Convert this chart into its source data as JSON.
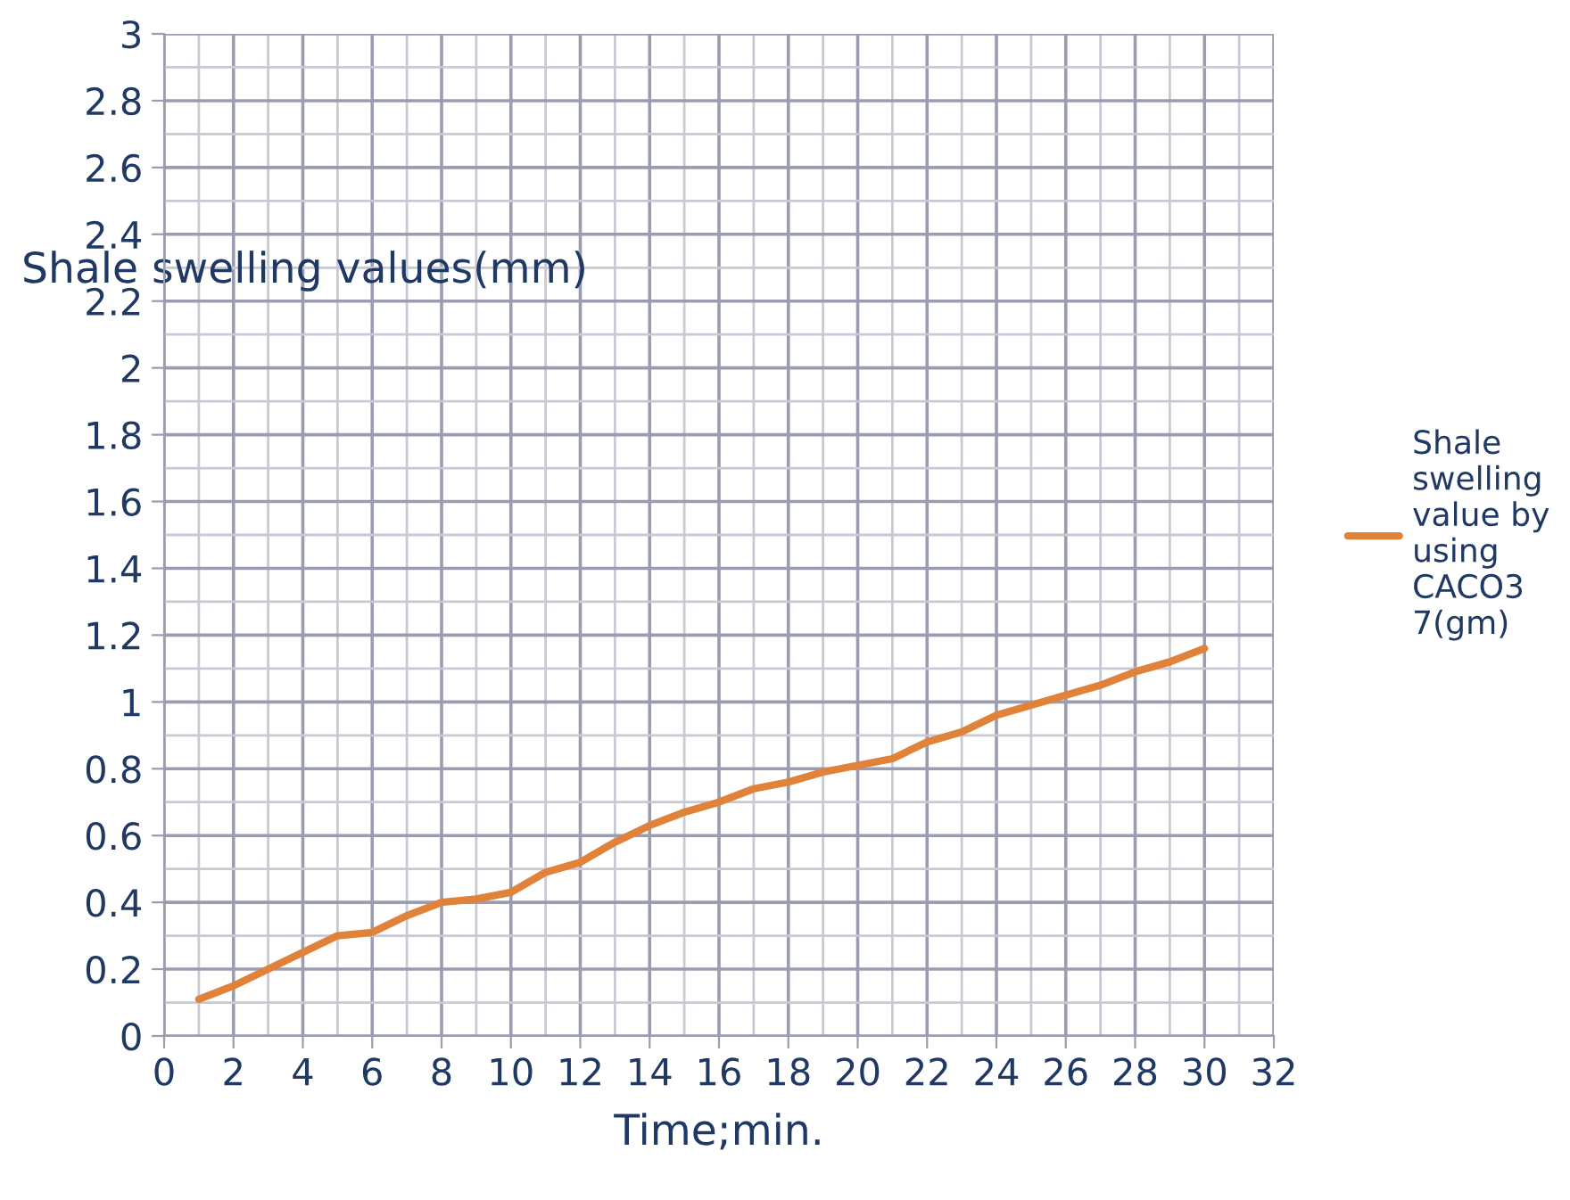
{
  "chart_data": {
    "type": "line",
    "xlabel": "Time;min.",
    "ylabel": "Shale swelling values(mm)",
    "x": [
      1,
      2,
      3,
      4,
      5,
      6,
      7,
      8,
      9,
      10,
      11,
      12,
      13,
      14,
      15,
      16,
      17,
      18,
      19,
      20,
      21,
      22,
      23,
      24,
      25,
      26,
      27,
      28,
      29,
      30
    ],
    "series": [
      {
        "name": "Shale swelling value by using CACO3 7(gm)",
        "color": "#e0823a",
        "values": [
          0.11,
          0.15,
          0.2,
          0.25,
          0.3,
          0.31,
          0.36,
          0.4,
          0.41,
          0.43,
          0.49,
          0.52,
          0.58,
          0.63,
          0.67,
          0.7,
          0.74,
          0.76,
          0.79,
          0.81,
          0.83,
          0.88,
          0.91,
          0.96,
          0.99,
          1.02,
          1.05,
          1.09,
          1.12,
          1.16
        ]
      }
    ],
    "xlim": [
      0,
      32
    ],
    "xticks": [
      0,
      2,
      4,
      6,
      8,
      10,
      12,
      14,
      16,
      18,
      20,
      22,
      24,
      26,
      28,
      30,
      32
    ],
    "ylim": [
      0,
      3
    ],
    "yticks": [
      0,
      0.2,
      0.4,
      0.6,
      0.8,
      1,
      1.2,
      1.4,
      1.6,
      1.8,
      2,
      2.2,
      2.4,
      2.6,
      2.8,
      3
    ],
    "grid": true,
    "legend": "right",
    "marker": "none",
    "line_style": "solid"
  }
}
